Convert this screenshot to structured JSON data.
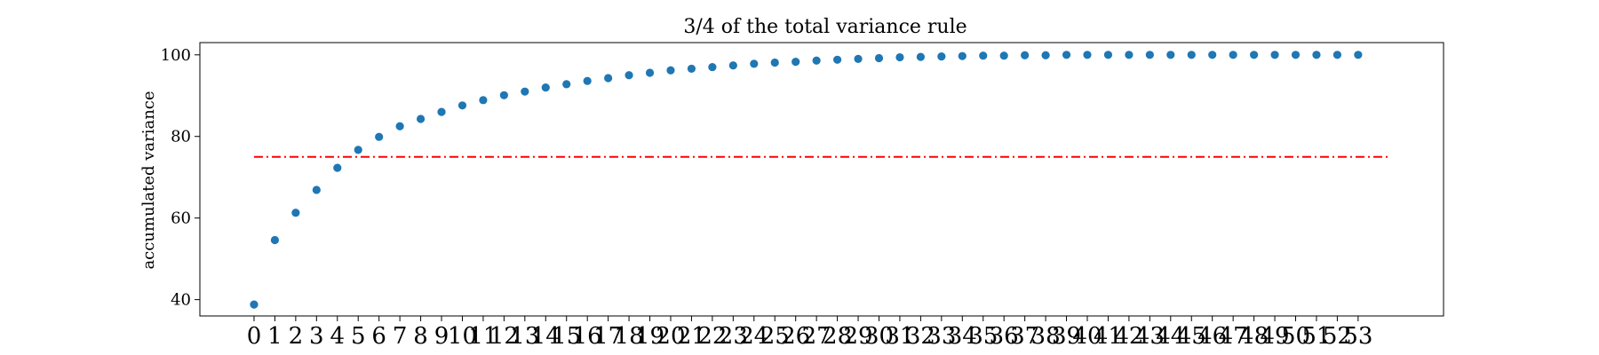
{
  "chart_data": {
    "type": "scatter",
    "title": "3/4 of the total variance rule",
    "xlabel": "",
    "ylabel": "accumulated variance",
    "x": [
      0,
      1,
      2,
      3,
      4,
      5,
      6,
      7,
      8,
      9,
      10,
      11,
      12,
      13,
      14,
      15,
      16,
      17,
      18,
      19,
      20,
      21,
      22,
      23,
      24,
      25,
      26,
      27,
      28,
      29,
      30,
      31,
      32,
      33,
      34,
      35,
      36,
      37,
      38,
      39,
      40,
      41,
      42,
      43,
      44,
      45,
      46,
      47,
      48,
      49,
      50,
      51,
      52,
      53
    ],
    "x_tick_labels": [
      "0",
      "1",
      "2",
      "3",
      "4",
      "5",
      "6",
      "7",
      "8",
      "9",
      "10",
      "11",
      "12",
      "13",
      "14",
      "15",
      "16",
      "17",
      "18",
      "19",
      "20",
      "21",
      "22",
      "23",
      "24",
      "25",
      "26",
      "27",
      "28",
      "29",
      "30",
      "31",
      "32",
      "33",
      "34",
      "35",
      "36",
      "37",
      "38",
      "39",
      "40",
      "41",
      "42",
      "43",
      "44",
      "45",
      "46",
      "47",
      "48",
      "49",
      "50",
      "51",
      "52",
      "53"
    ],
    "y": [
      38.8,
      54.6,
      61.3,
      66.9,
      72.3,
      76.7,
      79.9,
      82.5,
      84.3,
      86.0,
      87.6,
      88.9,
      90.1,
      91.0,
      92.0,
      92.8,
      93.6,
      94.3,
      95.0,
      95.6,
      96.2,
      96.6,
      97.0,
      97.4,
      97.8,
      98.1,
      98.3,
      98.6,
      98.8,
      99.0,
      99.2,
      99.4,
      99.5,
      99.6,
      99.7,
      99.8,
      99.8,
      99.9,
      99.9,
      100,
      100,
      100,
      100,
      100,
      100,
      100,
      100,
      100,
      100,
      100,
      100,
      100,
      100,
      100
    ],
    "y_ticks": [
      40,
      60,
      80,
      100
    ],
    "y_tick_labels": [
      "40",
      "60",
      "80",
      "100"
    ],
    "xlim": [
      -2.6,
      57.1
    ],
    "ylim": [
      36.0,
      103.0
    ],
    "threshold": {
      "y": 75,
      "x_start": 0,
      "x_end": 54.5,
      "color": "#ff0000",
      "style": "dash-dot"
    },
    "marker_color": "#1f77b4",
    "grid": false,
    "legend": "none"
  }
}
